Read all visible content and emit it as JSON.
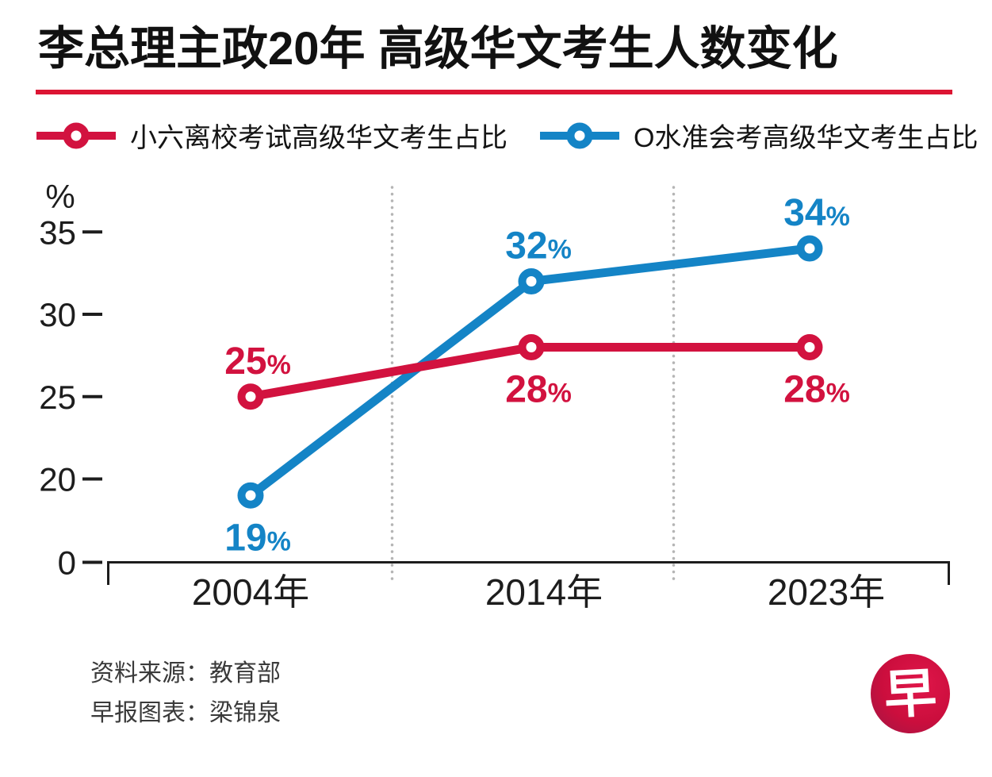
{
  "title": "李总理主政20年  高级华文考生人数变化",
  "legend": [
    {
      "label": "小六离校考试高级华文考生占比",
      "color": "#d2123f"
    },
    {
      "label": "O水准会考高级华文考生占比",
      "color": "#1484c6"
    }
  ],
  "chart_data": {
    "type": "line",
    "title": "李总理主政20年  高级华文考生人数变化",
    "categories": [
      "2004年",
      "2014年",
      "2023年"
    ],
    "series": [
      {
        "name": "小六离校考试高级华文考生占比",
        "color": "#d2123f",
        "values": [
          25,
          28,
          28
        ],
        "point_labels": [
          "25%",
          "28%",
          "28%"
        ],
        "label_side": [
          "above",
          "below",
          "below"
        ]
      },
      {
        "name": "O水准会考高级华文考生占比",
        "color": "#1484c6",
        "values": [
          19,
          32,
          34
        ],
        "point_labels": [
          "19%",
          "32%",
          "34%"
        ],
        "label_side": [
          "below",
          "above",
          "above"
        ]
      }
    ],
    "xlabel": "",
    "ylabel": "%",
    "yticks": [
      35,
      30,
      25,
      20,
      0
    ],
    "axis_note": "broken y-axis: 0 shown at baseline, scale resumes at 20, top 35",
    "grid": "dotted gray vertical separators between year columns",
    "legend_position": "top"
  },
  "source": {
    "line1": "资料来源：教育部",
    "line2": "早报图表：梁锦泉"
  },
  "logo": {
    "character": "早",
    "bg": "#cb0e3d"
  },
  "colors": {
    "red": "#d2123f",
    "blue": "#1484c6",
    "title_rule": "#dc1533",
    "axis": "#1d1d1d",
    "separator": "#b5b5b5",
    "title_text": "#111111",
    "source_text": "#3a3a3a",
    "logo_light": "#e0164a",
    "logo_main": "#cb0e3d",
    "logo_dark": "#9c1746",
    "background": "#ffffff"
  }
}
